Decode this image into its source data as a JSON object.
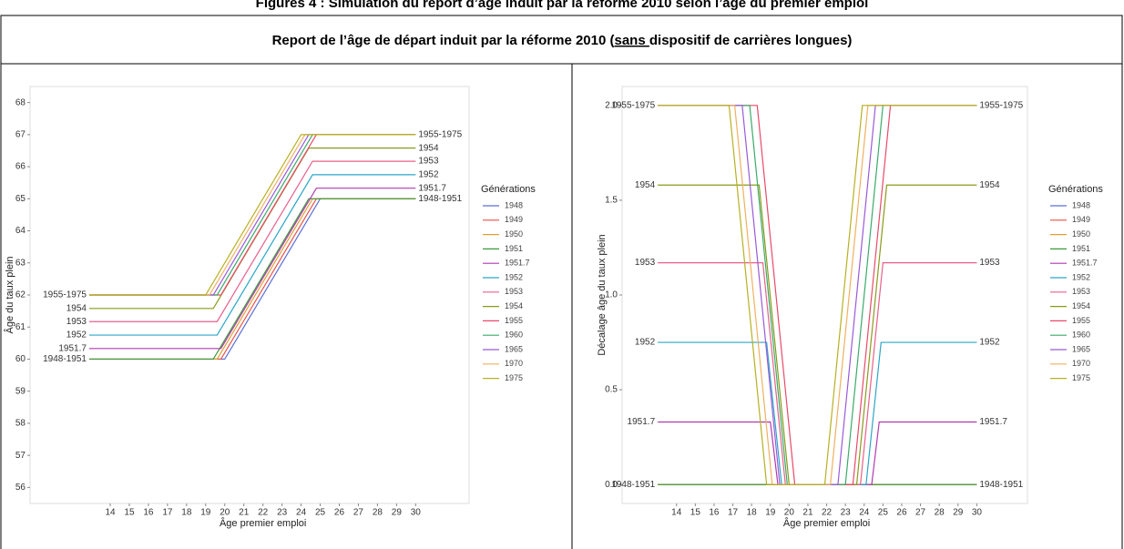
{
  "header": {
    "figure_title": "Figures 4 : Simulation du report d’âge induit par la réforme 2010 selon l’âge du premier emploi",
    "table_heading": [
      "Report de l’âge de départ induit par la réforme 2010 (",
      "sans ",
      "dispositif de carrières longues)"
    ]
  },
  "chart_data": [
    {
      "type": "line",
      "xlabel": "Âge premier emploi",
      "ylabel": "Âge du taux plein",
      "legend_title": "Générations",
      "xlim": [
        9.8,
        32.8
      ],
      "ylim": [
        55.5,
        68.5
      ],
      "xticks": [
        14,
        15,
        16,
        17,
        18,
        19,
        20,
        21,
        22,
        23,
        24,
        25,
        26,
        27,
        28,
        29,
        30
      ],
      "yticks": [
        56,
        57,
        58,
        59,
        60,
        61,
        62,
        63,
        64,
        65,
        66,
        67,
        68
      ],
      "grid": false,
      "series": [
        {
          "name": "1948",
          "color": "#5a6fd6",
          "x": [
            12.9,
            20.0,
            25.0,
            30
          ],
          "values": [
            60,
            60,
            65,
            65
          ]
        },
        {
          "name": "1949",
          "color": "#e8514a",
          "x": [
            12.9,
            19.8,
            24.8,
            30
          ],
          "values": [
            60,
            60,
            65,
            65
          ]
        },
        {
          "name": "1950",
          "color": "#e0a030",
          "x": [
            12.9,
            19.6,
            24.6,
            30
          ],
          "values": [
            60,
            60,
            65,
            65
          ]
        },
        {
          "name": "1951",
          "color": "#3a9a3a",
          "x": [
            12.9,
            19.4,
            24.4,
            30
          ],
          "values": [
            60,
            60,
            65,
            65
          ]
        },
        {
          "name": "1951.7",
          "color": "#b03ab0",
          "x": [
            12.9,
            19.8,
            24.8,
            30
          ],
          "values": [
            60.33,
            60.33,
            65.33,
            65.33
          ]
        },
        {
          "name": "1952",
          "color": "#2aa6c8",
          "x": [
            12.9,
            19.6,
            24.6,
            30
          ],
          "values": [
            60.75,
            60.75,
            65.75,
            65.75
          ]
        },
        {
          "name": "1953",
          "color": "#e8608a",
          "x": [
            12.9,
            19.6,
            24.6,
            30
          ],
          "values": [
            61.17,
            61.17,
            66.17,
            66.17
          ]
        },
        {
          "name": "1954",
          "color": "#8a9a1a",
          "x": [
            12.9,
            19.4,
            24.4,
            30
          ],
          "values": [
            61.58,
            61.58,
            66.58,
            66.58
          ]
        },
        {
          "name": "1955",
          "color": "#e84a6a",
          "x": [
            12.9,
            19.8,
            24.8,
            30
          ],
          "values": [
            62,
            62,
            67,
            67
          ]
        },
        {
          "name": "1960",
          "color": "#3aaa6a",
          "x": [
            12.9,
            19.6,
            24.6,
            30
          ],
          "values": [
            62,
            62,
            67,
            67
          ]
        },
        {
          "name": "1965",
          "color": "#9a5ad8",
          "x": [
            12.9,
            19.4,
            24.4,
            30
          ],
          "values": [
            62,
            62,
            67,
            67
          ]
        },
        {
          "name": "1970",
          "color": "#f0b060",
          "x": [
            12.9,
            19.2,
            24.2,
            30
          ],
          "values": [
            62,
            62,
            67,
            67
          ]
        },
        {
          "name": "1975",
          "color": "#b8b020",
          "x": [
            12.9,
            19.0,
            24.0,
            30
          ],
          "values": [
            62,
            62,
            67,
            67
          ]
        }
      ],
      "left_labels": [
        {
          "text": "1955-1975",
          "y": 62
        },
        {
          "text": "1954",
          "y": 61.58
        },
        {
          "text": "1953",
          "y": 61.17
        },
        {
          "text": "1952",
          "y": 60.75
        },
        {
          "text": "1951.7",
          "y": 60.33
        },
        {
          "text": "1948-1951",
          "y": 60
        }
      ],
      "right_labels": [
        {
          "text": "1955-1975",
          "y": 67
        },
        {
          "text": "1954",
          "y": 66.58
        },
        {
          "text": "1953",
          "y": 66.17
        },
        {
          "text": "1952",
          "y": 65.75
        },
        {
          "text": "1951.7",
          "y": 65.33
        },
        {
          "text": "1948-1951",
          "y": 65
        }
      ]
    },
    {
      "type": "line",
      "xlabel": "Âge premier emploi",
      "ylabel": "Décalage âge du taux plein",
      "legend_title": "Générations",
      "xlim": [
        11.1,
        32.7
      ],
      "ylim": [
        -0.1,
        2.1
      ],
      "xticks": [
        14,
        15,
        16,
        17,
        18,
        19,
        20,
        21,
        22,
        23,
        24,
        25,
        26,
        27,
        28,
        29,
        30
      ],
      "yticks": [
        {
          "value": 0,
          "label": "0.0"
        },
        0.5,
        {
          "value": 1,
          "label": "1.0"
        },
        1.5,
        {
          "value": 2,
          "label": "2.0"
        }
      ],
      "grid": false,
      "series": [
        {
          "name": "1948",
          "color": "#5a6fd6",
          "x": [
            13,
            30
          ],
          "values": [
            0,
            0
          ]
        },
        {
          "name": "1949",
          "color": "#e8514a",
          "x": [
            13,
            30
          ],
          "values": [
            0,
            0
          ]
        },
        {
          "name": "1950",
          "color": "#e0a030",
          "x": [
            13,
            30
          ],
          "values": [
            0,
            0
          ]
        },
        {
          "name": "1951",
          "color": "#3a9a3a",
          "x": [
            13,
            30
          ],
          "values": [
            0,
            0
          ]
        },
        {
          "name": "1951.7",
          "color": "#b03ab0",
          "x": [
            13,
            19.0,
            19.4,
            24.4,
            24.8,
            30
          ],
          "values": [
            0.33,
            0.33,
            0,
            0,
            0.33,
            0.33
          ]
        },
        {
          "name": "1952",
          "color": "#2aa6c8",
          "x": [
            13,
            18.8,
            19.6,
            24.1,
            24.9,
            30
          ],
          "values": [
            0.75,
            0.75,
            0,
            0,
            0.75,
            0.75
          ]
        },
        {
          "name": "1953",
          "color": "#e8608a",
          "x": [
            13,
            18.6,
            19.8,
            23.8,
            25.0,
            30
          ],
          "values": [
            1.17,
            1.17,
            0,
            0,
            1.17,
            1.17
          ]
        },
        {
          "name": "1954",
          "color": "#8a9a1a",
          "x": [
            13,
            18.4,
            20.0,
            23.6,
            25.2,
            30
          ],
          "values": [
            1.58,
            1.58,
            0,
            0,
            1.58,
            1.58
          ]
        },
        {
          "name": "1955",
          "color": "#e84a6a",
          "x": [
            13,
            18.3,
            20.3,
            23.4,
            25.4,
            30
          ],
          "values": [
            2,
            2,
            0,
            0,
            2,
            2
          ]
        },
        {
          "name": "1960",
          "color": "#3aaa6a",
          "x": [
            13,
            17.9,
            19.9,
            23.0,
            25.0,
            30
          ],
          "values": [
            2,
            2,
            0,
            0,
            2,
            2
          ]
        },
        {
          "name": "1965",
          "color": "#9a5ad8",
          "x": [
            13,
            17.5,
            19.5,
            22.6,
            24.6,
            30
          ],
          "values": [
            2,
            2,
            0,
            0,
            2,
            2
          ]
        },
        {
          "name": "1970",
          "color": "#f0b060",
          "x": [
            13,
            17.1,
            19.1,
            22.2,
            24.2,
            30
          ],
          "values": [
            2,
            2,
            0,
            0,
            2,
            2
          ]
        },
        {
          "name": "1975",
          "color": "#b8b020",
          "x": [
            13,
            16.8,
            18.8,
            21.9,
            23.9,
            30
          ],
          "values": [
            2,
            2,
            0,
            0,
            2,
            2
          ]
        }
      ],
      "left_labels": [
        {
          "text": "1955-1975",
          "y": 2
        },
        {
          "text": "1954",
          "y": 1.58
        },
        {
          "text": "1953",
          "y": 1.17
        },
        {
          "text": "1952",
          "y": 0.75
        },
        {
          "text": "1951.7",
          "y": 0.33
        },
        {
          "text": "1948-1951",
          "y": 0
        }
      ],
      "right_labels": [
        {
          "text": "1955-1975",
          "y": 2
        },
        {
          "text": "1954",
          "y": 1.58
        },
        {
          "text": "1953",
          "y": 1.17
        },
        {
          "text": "1952",
          "y": 0.75
        },
        {
          "text": "1951.7",
          "y": 0.33
        },
        {
          "text": "1948-1951",
          "y": 0
        }
      ]
    }
  ]
}
